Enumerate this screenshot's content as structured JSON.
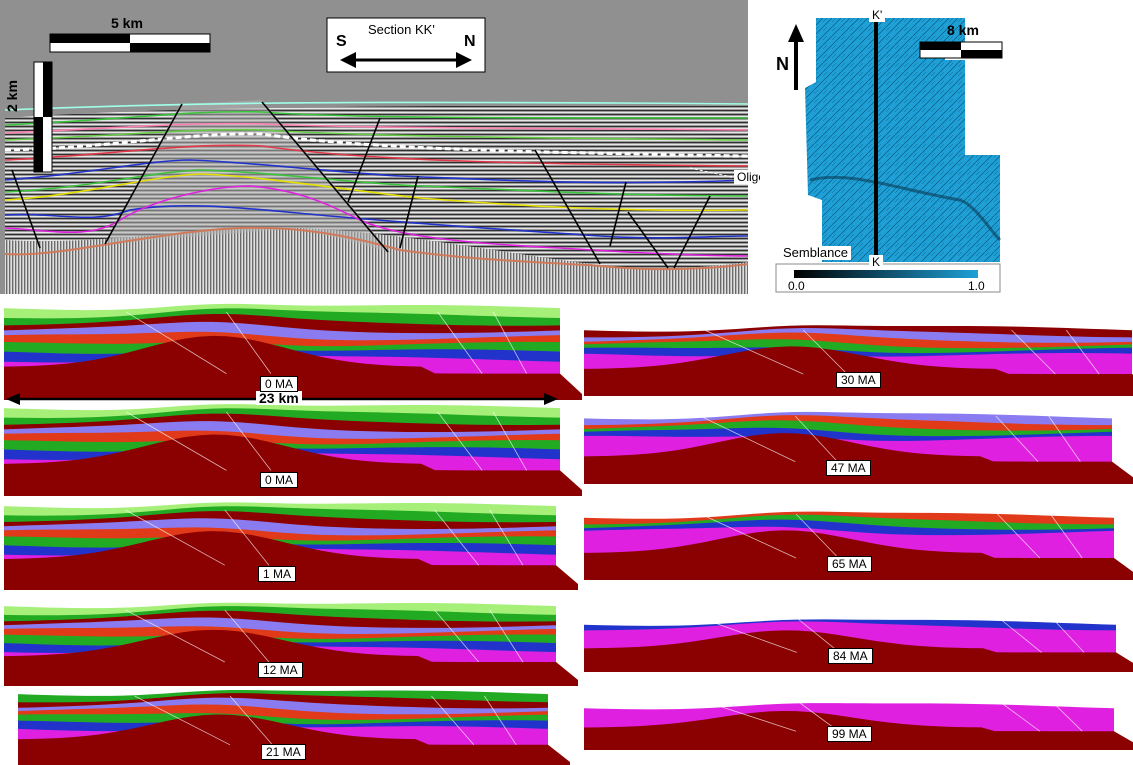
{
  "seismic": {
    "scale_horizontal": "5 km",
    "scale_vertical": "2 km",
    "section_label": "Section KK'",
    "direction_left": "S",
    "direction_right": "N",
    "horizon_label": "Oligocene"
  },
  "map": {
    "north": "N",
    "scale": "8 km",
    "marker_top": "K'",
    "marker_bottom": "K",
    "colorbar_label": "Semblance",
    "colorbar_min": "0.0",
    "colorbar_max": "1.0"
  },
  "restoration": {
    "width_label": "23 km",
    "left_panels": [
      "0 MA",
      "0 MA",
      "1 MA",
      "12 MA",
      "21 MA"
    ],
    "right_panels": [
      "30 MA",
      "47 MA",
      "65 MA",
      "84 MA",
      "99 MA"
    ]
  },
  "colors": {
    "basement": "#8b0000",
    "magenta": "#e020e0",
    "blue": "#2233cc",
    "lavender": "#8a7cf0",
    "green": "#22aa22",
    "red": "#e03a1a",
    "light_green": "#a6f07a",
    "seismic_bg": "#909090"
  }
}
